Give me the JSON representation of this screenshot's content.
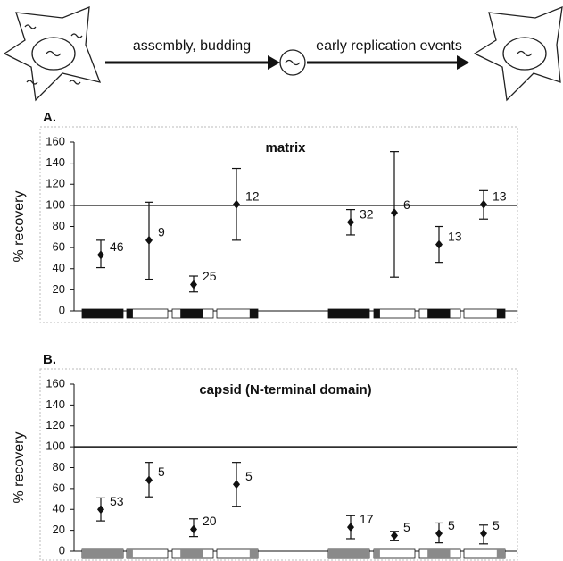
{
  "diagram": {
    "step1": "assembly, budding",
    "step2": "early replication events"
  },
  "chart_data": [
    {
      "type": "errorbar",
      "panel": "A.",
      "title": "matrix",
      "y_label": "% recovery",
      "categories": [
        null,
        null,
        null,
        null,
        null,
        null,
        null,
        null
      ],
      "values": [
        53,
        67,
        25,
        101,
        84,
        93,
        63,
        101
      ],
      "upper": [
        67,
        103,
        33,
        135,
        96,
        151,
        80,
        114
      ],
      "lower": [
        41,
        30,
        18,
        67,
        72,
        32,
        46,
        87
      ],
      "n_labels": [
        46,
        9,
        25,
        12,
        32,
        6,
        13,
        13
      ],
      "reference_line": 100,
      "color": "#111111",
      "box_color": "#111111",
      "ylim": [
        0,
        160
      ],
      "yticks": [
        0,
        20,
        40,
        60,
        80,
        100,
        120,
        140,
        160
      ]
    },
    {
      "type": "errorbar",
      "panel": "B.",
      "title": "capsid (N-terminal domain)",
      "y_label": "% recovery",
      "categories": [
        null,
        null,
        null,
        null,
        null,
        null,
        null,
        null
      ],
      "values": [
        40,
        68,
        21,
        64,
        23,
        15,
        17,
        17
      ],
      "upper": [
        51,
        85,
        31,
        85,
        34,
        19,
        27,
        25
      ],
      "lower": [
        29,
        52,
        14,
        43,
        12,
        10,
        8,
        7
      ],
      "n_labels": [
        53,
        5,
        20,
        5,
        17,
        5,
        5,
        5
      ],
      "reference_line": 100,
      "color": "#111111",
      "box_color": "#8a8a8a",
      "ylim": [
        0,
        160
      ],
      "yticks": [
        0,
        20,
        40,
        60,
        80,
        100,
        120,
        140,
        160
      ]
    }
  ]
}
